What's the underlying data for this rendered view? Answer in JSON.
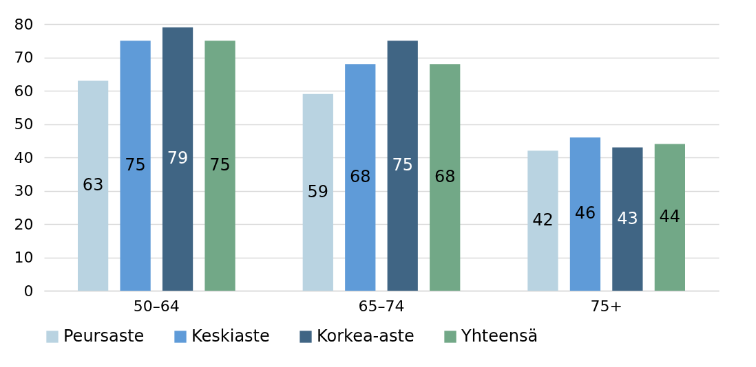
{
  "chart_data": {
    "type": "bar",
    "categories": [
      "50–64",
      "65–74",
      "75+"
    ],
    "series": [
      {
        "name": "Peursaste",
        "color": "#b9d3e1",
        "values": [
          63,
          59,
          42
        ]
      },
      {
        "name": "Keskiaste",
        "color": "#5f9bd8",
        "values": [
          75,
          68,
          46
        ]
      },
      {
        "name": "Korkea-aste",
        "color": "#406584",
        "values": [
          79,
          75,
          43
        ]
      },
      {
        "name": "Yhteensä",
        "color": "#72a887",
        "values": [
          75,
          68,
          44
        ]
      }
    ],
    "ylim": [
      0,
      80
    ],
    "yticks": [
      0,
      10,
      20,
      30,
      40,
      50,
      60,
      70,
      80
    ],
    "grid": "y",
    "legend": "bottom",
    "data_labels": true
  }
}
